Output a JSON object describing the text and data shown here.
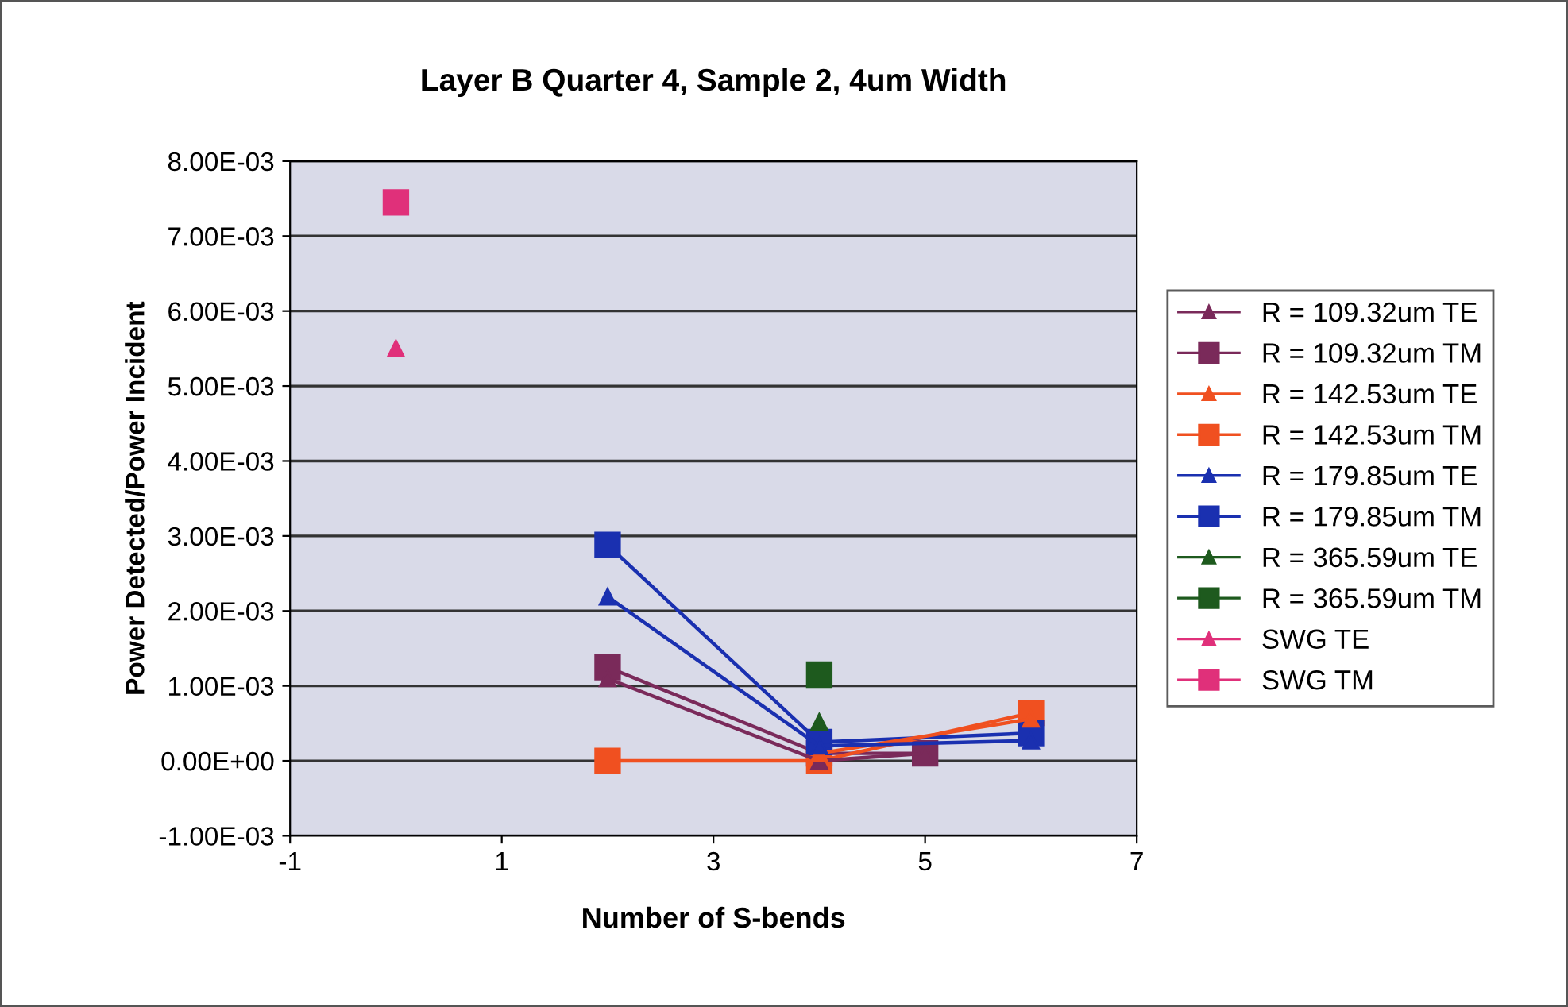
{
  "chart_data": {
    "type": "line",
    "title": "Layer B Quarter 4, Sample 2, 4um Width",
    "xlabel": "Number of S-bends",
    "ylabel": "Power Detected/Power Incident",
    "xlim": [
      -1,
      7
    ],
    "xticks": [
      -1,
      1,
      3,
      5,
      7
    ],
    "ylim": [
      -0.001,
      0.008
    ],
    "yticks": [
      {
        "value": -0.001,
        "label": "-1.00E-03"
      },
      {
        "value": 0,
        "label": "0.00E+00"
      },
      {
        "value": 0.001,
        "label": "1.00E-03"
      },
      {
        "value": 0.002,
        "label": "2.00E-03"
      },
      {
        "value": 0.003,
        "label": "3.00E-03"
      },
      {
        "value": 0.004,
        "label": "4.00E-03"
      },
      {
        "value": 0.005,
        "label": "5.00E-03"
      },
      {
        "value": 0.006,
        "label": "6.00E-03"
      },
      {
        "value": 0.007,
        "label": "7.00E-03"
      },
      {
        "value": 0.008,
        "label": "8.00E-03"
      }
    ],
    "grid": "y",
    "legend": "right",
    "series": [
      {
        "name": "R = 109.32um TE",
        "color": "#7a2a5a",
        "marker": "triangle",
        "x": [
          2,
          4,
          5
        ],
        "values": [
          0.0011,
          0.0,
          0.0001
        ]
      },
      {
        "name": "R = 109.32um TM",
        "color": "#7a2a5a",
        "marker": "square",
        "x": [
          2,
          4,
          5
        ],
        "values": [
          0.00125,
          0.0001,
          0.0001
        ]
      },
      {
        "name": "R = 142.53um TE",
        "color": "#f05020",
        "marker": "triangle",
        "x": [
          4,
          6
        ],
        "values": [
          0.0001,
          0.00056
        ]
      },
      {
        "name": "R = 142.53um TM",
        "color": "#f05020",
        "marker": "square",
        "x": [
          2,
          4,
          6
        ],
        "values": [
          0.0,
          0.0,
          0.00064
        ]
      },
      {
        "name": "R = 179.85um TE",
        "color": "#1a30b0",
        "marker": "triangle",
        "x": [
          2,
          4,
          6
        ],
        "values": [
          0.00219,
          0.0002,
          0.00027
        ]
      },
      {
        "name": "R = 179.85um TM",
        "color": "#1a30b0",
        "marker": "square",
        "x": [
          2,
          4,
          6
        ],
        "values": [
          0.00288,
          0.00025,
          0.00037
        ]
      },
      {
        "name": "R = 365.59um TE",
        "color": "#1e5a1e",
        "marker": "triangle",
        "x": [
          4
        ],
        "values": [
          0.00052
        ]
      },
      {
        "name": "R = 365.59um TM",
        "color": "#1e5a1e",
        "marker": "square",
        "x": [
          4
        ],
        "values": [
          0.00115
        ]
      },
      {
        "name": "SWG TE",
        "color": "#e0307a",
        "marker": "triangle",
        "x": [
          0
        ],
        "values": [
          0.0055
        ]
      },
      {
        "name": "SWG TM",
        "color": "#e0307a",
        "marker": "square",
        "x": [
          0
        ],
        "values": [
          0.00745
        ]
      }
    ]
  }
}
